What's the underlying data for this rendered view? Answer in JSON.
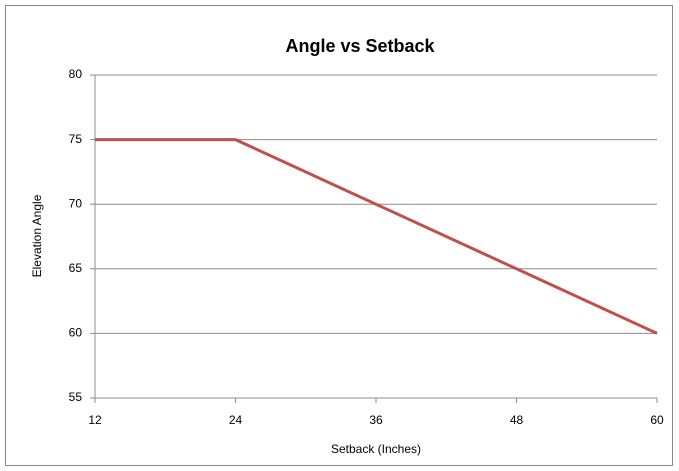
{
  "chart_data": {
    "type": "line",
    "title": "Angle vs Setback",
    "x_label": "Setback (Inches)",
    "y_label": "Elevation Angle",
    "x": [
      12,
      24,
      36,
      48,
      60
    ],
    "series": [
      {
        "name": "Elevation Angle",
        "color": "#c0504d",
        "values": [
          75,
          75,
          70,
          65,
          60
        ]
      }
    ],
    "xlim": [
      12,
      60
    ],
    "xticks": [
      12,
      24,
      36,
      48,
      60
    ],
    "ylim": [
      55,
      80
    ],
    "yticks": [
      55,
      60,
      65,
      70,
      75,
      80
    ],
    "grid": true
  }
}
